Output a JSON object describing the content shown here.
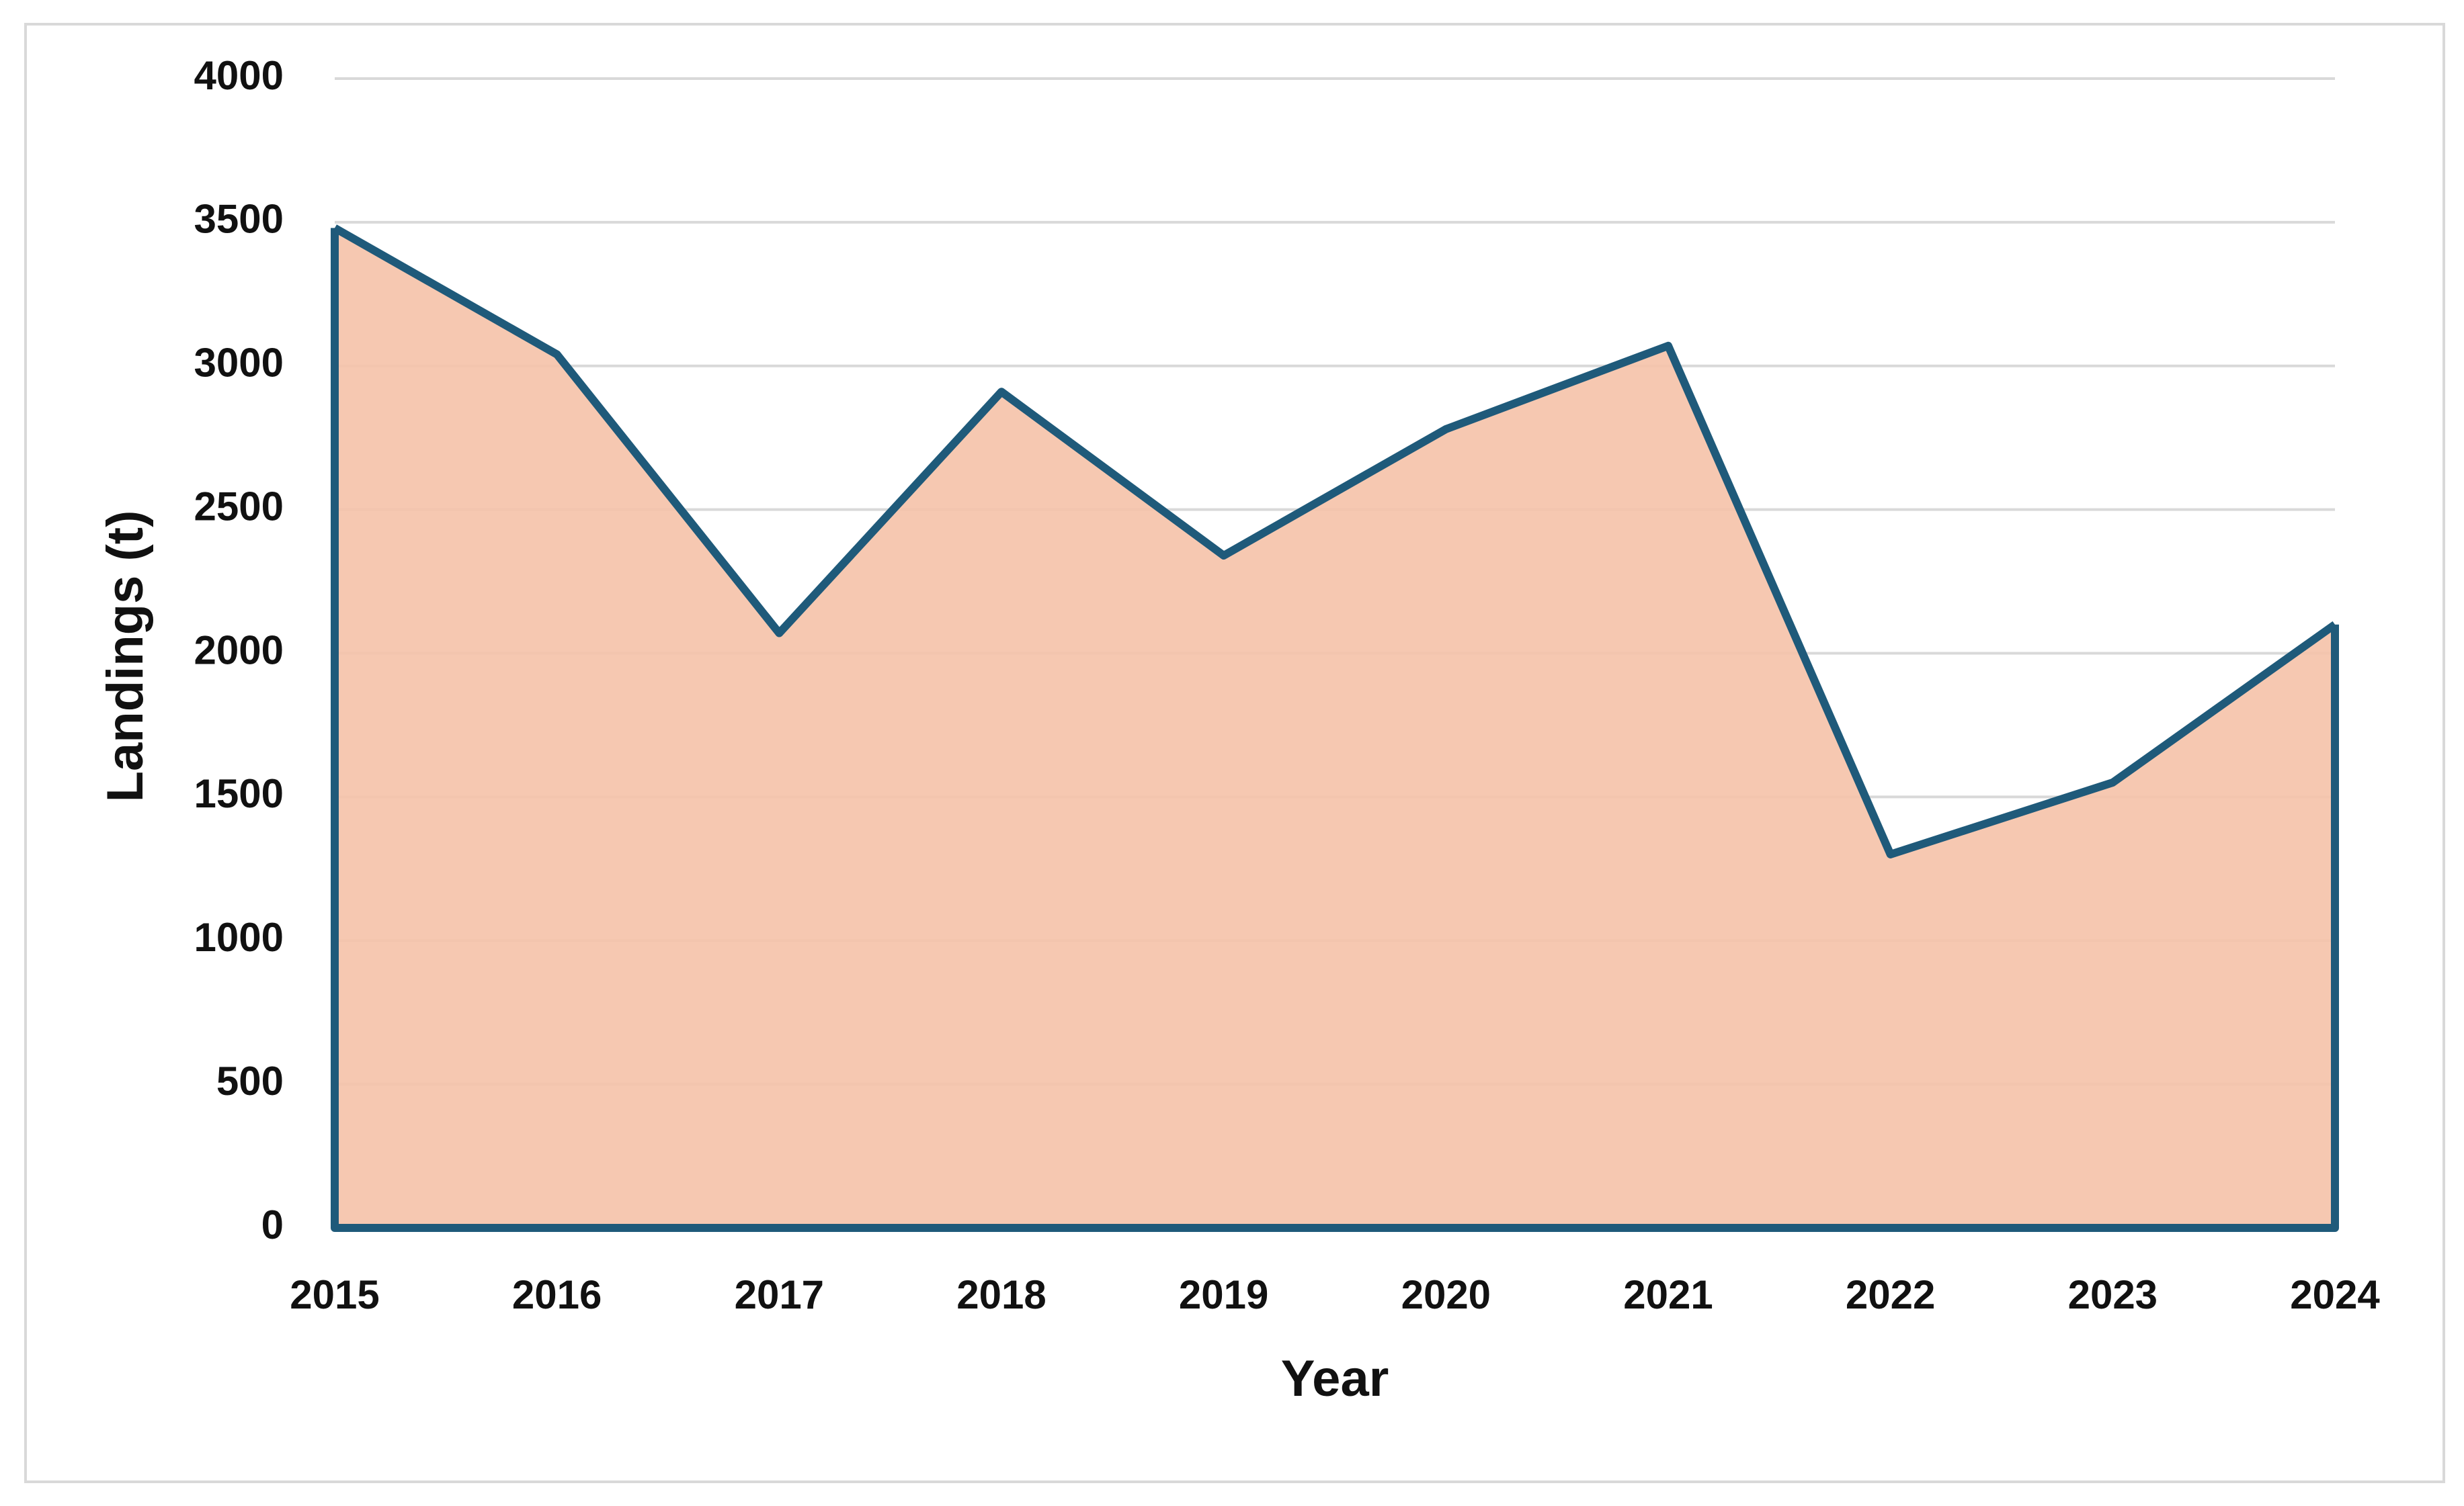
{
  "chart_data": {
    "type": "area",
    "x_label": "Year",
    "y_label": "Landings (t)",
    "categories": [
      "2015",
      "2016",
      "2017",
      "2018",
      "2019",
      "2020",
      "2021",
      "2022",
      "2023",
      "2024"
    ],
    "values": [
      3480,
      3040,
      2070,
      2910,
      2340,
      2780,
      3070,
      1300,
      1550,
      2100
    ],
    "color": "#1f5a7a",
    "fill_color": "#f5c2a8",
    "ylim": [
      0,
      4000
    ],
    "yticks": [
      0,
      500,
      1000,
      1500,
      2000,
      2500,
      3000,
      3500,
      4000
    ],
    "grid": true
  }
}
